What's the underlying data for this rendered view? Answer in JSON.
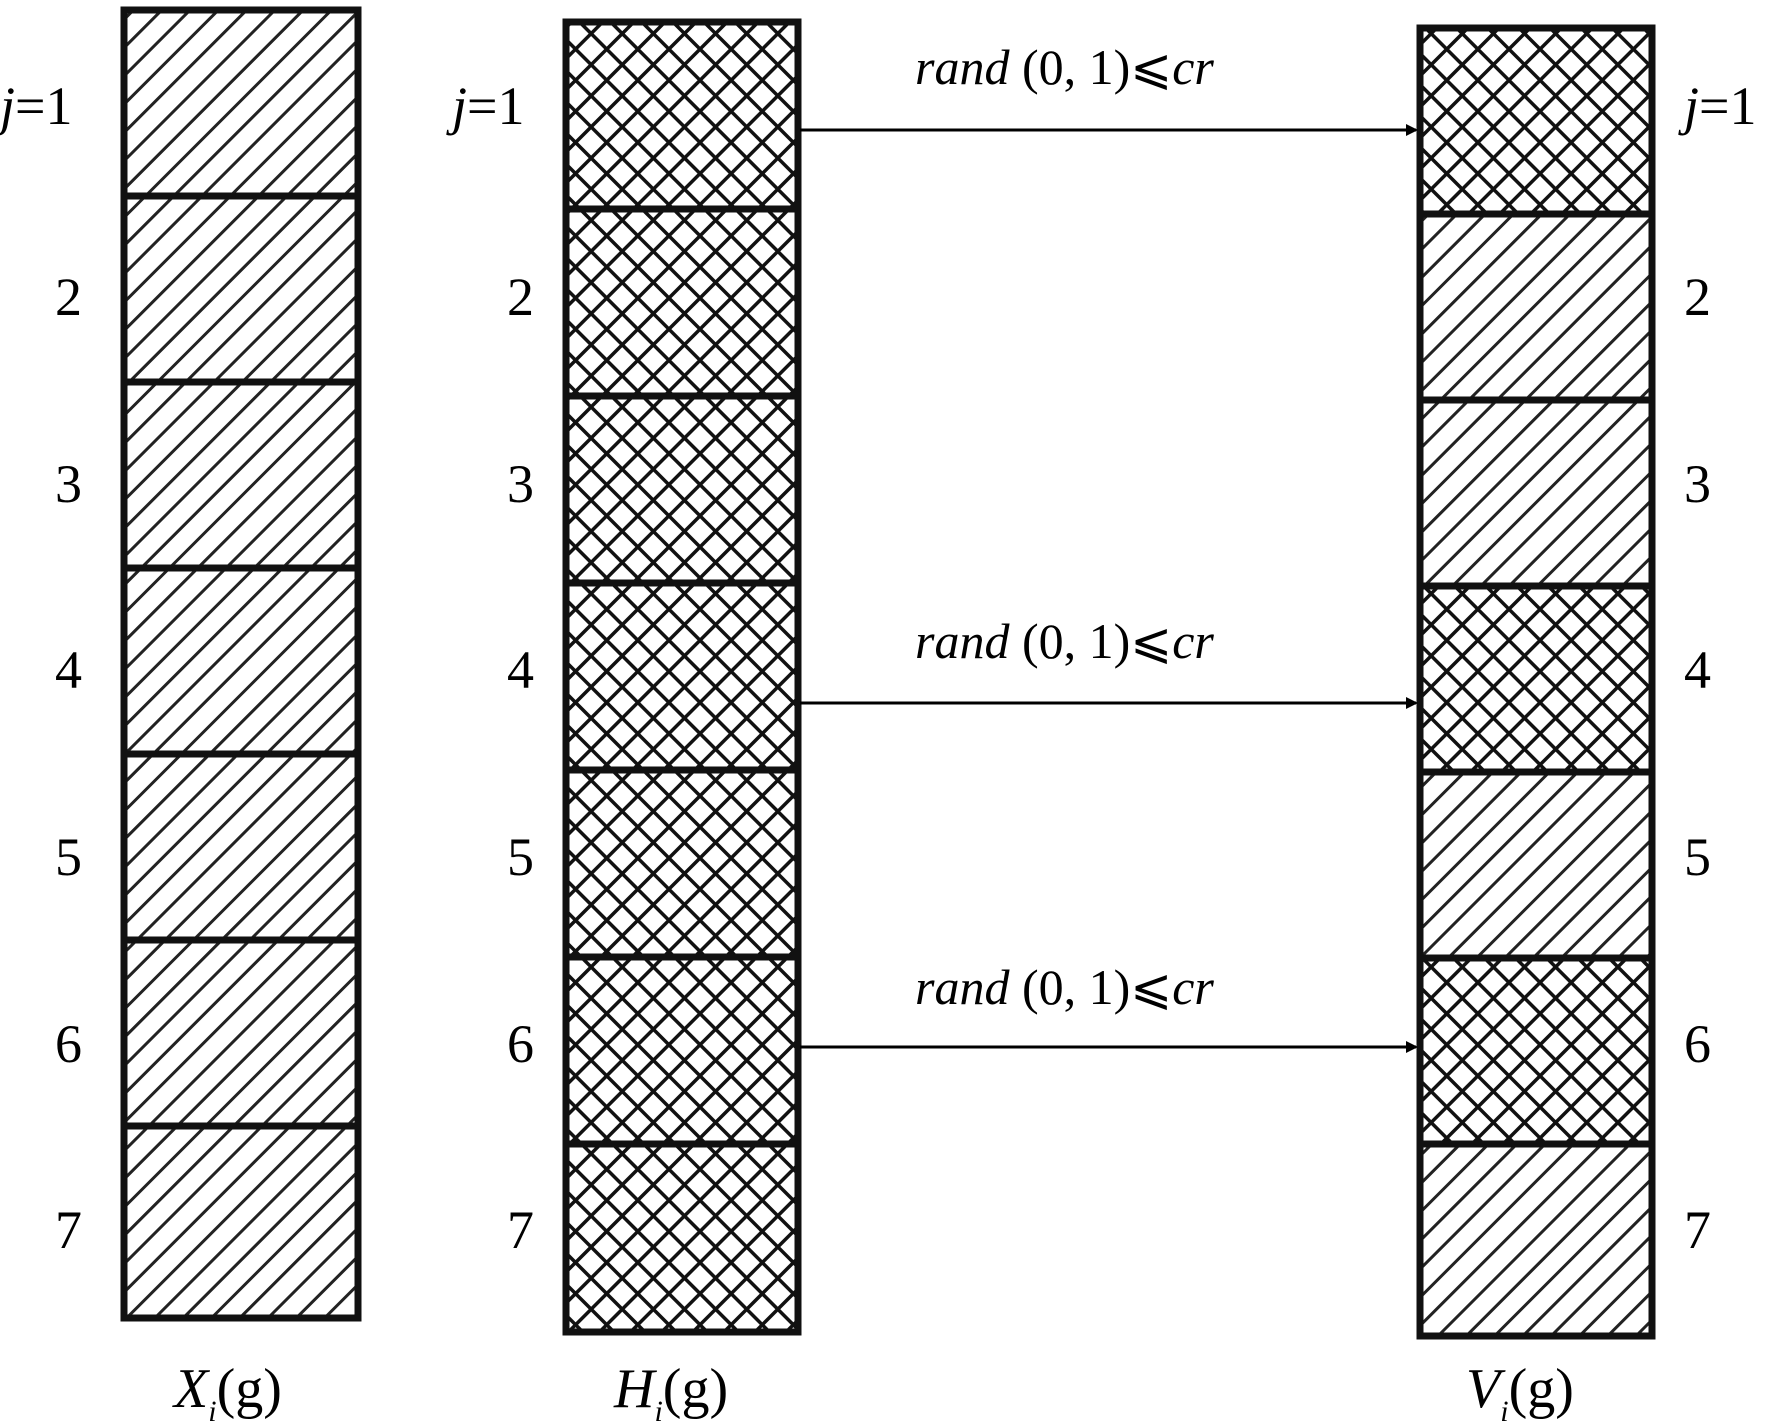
{
  "row_labels": {
    "first_var": "j",
    "first_eq": "=1",
    "others": [
      "2",
      "3",
      "4",
      "5",
      "6",
      "7"
    ]
  },
  "columns": [
    {
      "id": "X",
      "var": "X",
      "sub": "i",
      "arg": "(g)",
      "pattern": "diagonal-hatch"
    },
    {
      "id": "H",
      "var": "H",
      "sub": "i",
      "arg": "(g)",
      "pattern": "crosshatch"
    },
    {
      "id": "V",
      "var": "V",
      "sub": "i",
      "arg": "(g)",
      "pattern": "mixed"
    }
  ],
  "v_cells_from_H": [
    1,
    4,
    6
  ],
  "condition": {
    "func": "rand",
    "args": " (0, 1)",
    "op": "⩽",
    "var": "cr"
  },
  "arrows_at_rows": [
    1,
    4,
    6
  ]
}
